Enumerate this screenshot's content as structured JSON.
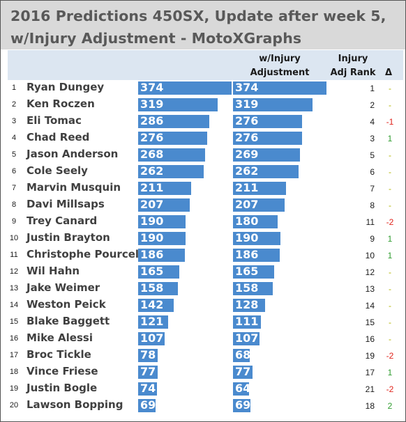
{
  "title_line1": "2016 Predictions 450SX, Update after week 5,",
  "title_line2": "w/Injury Adjustment - MotoXGraphs",
  "headers": {
    "adj_line1": "w/Injury",
    "adj_line2": "Adjustment",
    "rank_line1": "Injury",
    "rank_line2": "Adj Rank",
    "delta": "Δ"
  },
  "colors": {
    "bar": "#4a8ace",
    "positive": "#2e9c2e",
    "negative": "#e0231b",
    "neutral": "#b2b400"
  },
  "chart_data": {
    "type": "bar",
    "categories": [
      "Ryan Dungey",
      "Ken Roczen",
      "Eli Tomac",
      "Chad Reed",
      "Jason Anderson",
      "Cole Seely",
      "Marvin Musquin",
      "Davi Millsaps",
      "Trey Canard",
      "Justin Brayton",
      "Christophe Pourcel",
      "Wil Hahn",
      "Jake Weimer",
      "Weston Peick",
      "Blake Baggett",
      "Mike Alessi",
      "Broc Tickle",
      "Vince Friese",
      "Justin Bogle",
      "Lawson Bopping"
    ],
    "series": [
      {
        "values": [
          374,
          319,
          286,
          276,
          268,
          262,
          211,
          207,
          190,
          190,
          186,
          165,
          158,
          142,
          121,
          107,
          78,
          77,
          74,
          69
        ]
      },
      {
        "name": "w/Injury Adjustment",
        "values": [
          374,
          319,
          276,
          276,
          269,
          262,
          211,
          207,
          180,
          190,
          186,
          165,
          158,
          128,
          111,
          107,
          68,
          77,
          64,
          69
        ]
      }
    ],
    "ranks": [
      "1",
      "2",
      "3",
      "4",
      "5",
      "6",
      "7",
      "8",
      "9",
      "10",
      "11",
      "12",
      "13",
      "14",
      "15",
      "16",
      "17",
      "18",
      "19",
      "20"
    ],
    "adj_rank": [
      "1",
      "2",
      "4",
      "3",
      "5",
      "6",
      "7",
      "8",
      "11",
      "9",
      "10",
      "12",
      "13",
      "14",
      "15",
      "16",
      "19",
      "17",
      "21",
      "18"
    ],
    "delta": [
      "-",
      "-",
      "-1",
      "1",
      "-",
      "-",
      "-",
      "-",
      "-2",
      "1",
      "1",
      "-",
      "-",
      "-",
      "-",
      "-",
      "-2",
      "1",
      "-2",
      "2"
    ]
  }
}
